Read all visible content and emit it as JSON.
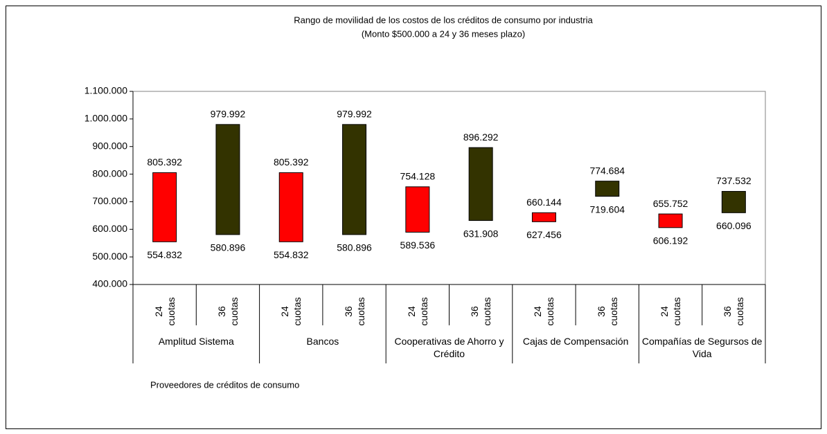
{
  "chart_data": {
    "type": "floating-bar",
    "title": "Rango de movilidad de los costos de los créditos de consumo por industria",
    "subtitle": "(Monto $500.000 a 24 y 36 meses plazo)",
    "x_label": "Proveedores de créditos de consumo",
    "categories": [
      "Amplitud Sistema",
      "Bancos",
      "Cooperativas de Ahorro y Crédito",
      "Cajas de Compensación",
      "Compañías de Segursos de Vida"
    ],
    "series": [
      {
        "name": "24 cuotas",
        "color": "#ff0000",
        "low": [
          554832,
          554832,
          589536,
          627456,
          606192
        ],
        "high": [
          805392,
          805392,
          754128,
          660144,
          655752
        ],
        "low_labels": [
          "554.832",
          "554.832",
          "589.536",
          "627.456",
          "606.192"
        ],
        "high_labels": [
          "805.392",
          "805.392",
          "754.128",
          "660.144",
          "655.752"
        ]
      },
      {
        "name": "36 cuotas",
        "color": "#333300",
        "low": [
          580896,
          580896,
          631908,
          719604,
          660096
        ],
        "high": [
          979992,
          979992,
          896292,
          774684,
          737532
        ],
        "low_labels": [
          "580.896",
          "580.896",
          "631.908",
          "719.604",
          "660.096"
        ],
        "high_labels": [
          "979.992",
          "979.992",
          "896.292",
          "774.684",
          "737.532"
        ]
      }
    ],
    "ylim": [
      400000,
      1100000
    ],
    "yticks": [
      {
        "value": 400000,
        "label": "400.000"
      },
      {
        "value": 500000,
        "label": "500.000"
      },
      {
        "value": 600000,
        "label": "600.000"
      },
      {
        "value": 700000,
        "label": "700.000"
      },
      {
        "value": 800000,
        "label": "800.000"
      },
      {
        "value": 900000,
        "label": "900.000"
      },
      {
        "value": 1000000,
        "label": "1.000.000"
      },
      {
        "value": 1100000,
        "label": "1.100.000"
      }
    ],
    "grid": false
  }
}
